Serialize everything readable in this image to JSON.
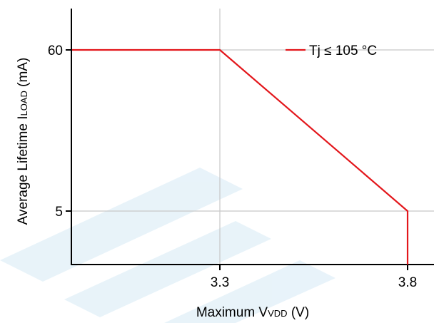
{
  "chart_data": {
    "type": "line",
    "xlabel": {
      "main": "Maximum V",
      "sub": "VDD",
      "unit": " (V)"
    },
    "ylabel": {
      "main": "Average Lifetime I",
      "sub": "LOAD",
      "unit": " (mA)"
    },
    "x_ticks": [
      "3.3",
      "3.8"
    ],
    "y_ticks": [
      "60",
      "5"
    ],
    "grid": true,
    "legend_position": "top-right",
    "series": [
      {
        "name": "Tj ≤ 105 °C",
        "color": "#e3161b",
        "points": [
          {
            "x": "start",
            "y": 60
          },
          {
            "x": 3.3,
            "y": 60
          },
          {
            "x": 3.8,
            "y": 5
          },
          {
            "x": 3.8,
            "y": "below 5"
          }
        ]
      }
    ]
  },
  "watermark": {
    "color": "#d6eaf6"
  }
}
